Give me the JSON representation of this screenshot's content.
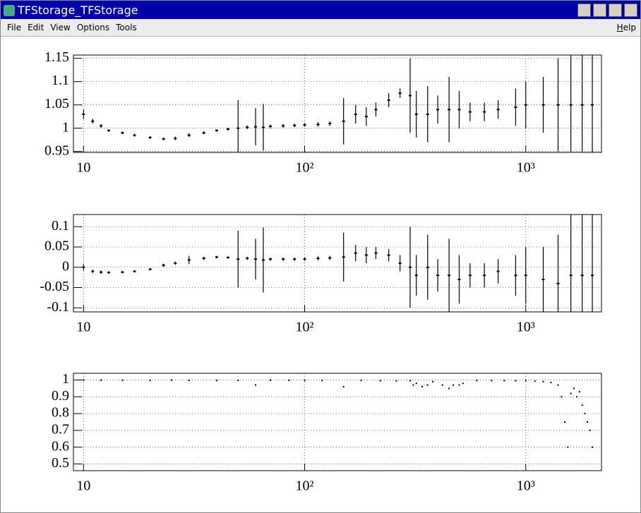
{
  "window": {
    "title": "TFStorage_TFStorage",
    "menu": [
      "File",
      "Edit",
      "View",
      "Options",
      "Tools"
    ],
    "help": "Help"
  },
  "chart_data": [
    {
      "type": "errorbar",
      "log_x": true,
      "grid": true,
      "color": "#000000",
      "xlim": [
        9,
        2200
      ],
      "xticks": [
        10,
        {
          "value": 100,
          "label": "10²"
        },
        {
          "value": 1000,
          "label": "10³"
        }
      ],
      "ylim": [
        0.948,
        1.157
      ],
      "yticks": [
        0.95,
        1,
        1.05,
        1.1,
        1.15
      ],
      "x": [
        10,
        11,
        12,
        13,
        15,
        17,
        20,
        23,
        26,
        30,
        35,
        40,
        45,
        50,
        55,
        60,
        65,
        70,
        80,
        90,
        100,
        115,
        130,
        150,
        170,
        190,
        210,
        240,
        270,
        300,
        320,
        360,
        400,
        450,
        500,
        560,
        650,
        750,
        900,
        1000,
        1200,
        1400,
        1600,
        1800,
        2000
      ],
      "values": [
        1.03,
        1.015,
        1.005,
        0.995,
        0.99,
        0.985,
        0.98,
        0.977,
        0.978,
        0.985,
        0.99,
        0.995,
        0.998,
        1.0,
        1.002,
        1.003,
        1.002,
        1.004,
        1.005,
        1.006,
        1.007,
        1.008,
        1.01,
        1.015,
        1.03,
        1.025,
        1.04,
        1.06,
        1.075,
        1.07,
        1.03,
        1.03,
        1.04,
        1.04,
        1.04,
        1.035,
        1.035,
        1.04,
        1.045,
        1.05,
        1.05,
        1.05,
        1.05,
        1.05,
        1.05
      ],
      "errors": [
        0.01,
        0.005,
        0.004,
        0.003,
        0.003,
        0.003,
        0.003,
        0.003,
        0.004,
        0.004,
        0.003,
        0.003,
        0.003,
        0.06,
        0.004,
        0.04,
        0.05,
        0.004,
        0.004,
        0.004,
        0.004,
        0.005,
        0.005,
        0.05,
        0.02,
        0.02,
        0.015,
        0.015,
        0.01,
        0.08,
        0.05,
        0.06,
        0.03,
        0.07,
        0.04,
        0.02,
        0.02,
        0.02,
        0.04,
        0.05,
        0.06,
        0.1,
        0.15,
        0.15,
        0.15
      ]
    },
    {
      "type": "errorbar",
      "log_x": true,
      "grid": true,
      "color": "#000000",
      "xlim": [
        9,
        2200
      ],
      "xticks": [
        10,
        {
          "value": 100,
          "label": "10²"
        },
        {
          "value": 1000,
          "label": "10³"
        }
      ],
      "ylim": [
        -0.11,
        0.13
      ],
      "yticks": [
        -0.1,
        -0.05,
        0,
        0.05,
        0.1
      ],
      "x": [
        10,
        11,
        12,
        13,
        15,
        17,
        20,
        23,
        26,
        30,
        35,
        40,
        45,
        50,
        55,
        60,
        65,
        70,
        80,
        90,
        100,
        115,
        130,
        150,
        170,
        190,
        210,
        240,
        270,
        300,
        320,
        360,
        400,
        450,
        500,
        560,
        650,
        750,
        900,
        1000,
        1200,
        1400,
        1600,
        1800,
        2000
      ],
      "values": [
        0.0,
        -0.01,
        -0.012,
        -0.013,
        -0.012,
        -0.01,
        -0.005,
        0.005,
        0.01,
        0.018,
        0.022,
        0.025,
        0.024,
        0.02,
        0.022,
        0.02,
        0.018,
        0.02,
        0.02,
        0.02,
        0.02,
        0.022,
        0.023,
        0.025,
        0.035,
        0.03,
        0.035,
        0.03,
        0.01,
        0.0,
        -0.02,
        0.0,
        -0.02,
        -0.02,
        -0.03,
        -0.02,
        -0.02,
        -0.01,
        -0.02,
        -0.02,
        -0.03,
        -0.04,
        -0.02,
        -0.02,
        -0.02
      ],
      "errors": [
        0.008,
        0.004,
        0.004,
        0.003,
        0.003,
        0.003,
        0.003,
        0.004,
        0.004,
        0.01,
        0.004,
        0.003,
        0.003,
        0.07,
        0.004,
        0.05,
        0.08,
        0.004,
        0.004,
        0.004,
        0.004,
        0.005,
        0.005,
        0.06,
        0.02,
        0.02,
        0.015,
        0.015,
        0.02,
        0.1,
        0.05,
        0.08,
        0.04,
        0.09,
        0.06,
        0.03,
        0.03,
        0.03,
        0.05,
        0.07,
        0.08,
        0.12,
        0.15,
        0.15,
        0.15
      ]
    },
    {
      "type": "scatter",
      "log_x": true,
      "grid": true,
      "color": "#000000",
      "xlim": [
        9,
        2200
      ],
      "xticks": [
        10,
        {
          "value": 100,
          "label": "10²"
        },
        {
          "value": 1000,
          "label": "10³"
        }
      ],
      "ylim": [
        0.46,
        1.04
      ],
      "yticks": [
        0.5,
        0.6,
        0.7,
        0.8,
        0.9,
        1
      ],
      "x": [
        10,
        12,
        15,
        20,
        25,
        30,
        40,
        50,
        60,
        70,
        85,
        100,
        120,
        150,
        180,
        220,
        260,
        300,
        310,
        320,
        340,
        360,
        380,
        420,
        450,
        470,
        500,
        520,
        600,
        700,
        800,
        900,
        1000,
        1100,
        1200,
        1300,
        1400,
        1450,
        1500,
        1550,
        1600,
        1650,
        1700,
        1750,
        1800,
        1850,
        1900,
        1950,
        2000
      ],
      "values": [
        1,
        0.999,
        0.999,
        0.998,
        0.999,
        0.998,
        0.997,
        0.998,
        0.97,
        0.998,
        0.998,
        0.997,
        0.997,
        0.96,
        0.997,
        0.996,
        0.995,
        0.996,
        0.97,
        0.98,
        0.96,
        0.97,
        0.99,
        0.97,
        0.95,
        0.97,
        0.97,
        0.98,
        0.997,
        0.997,
        0.996,
        0.996,
        0.996,
        0.993,
        0.99,
        0.985,
        0.97,
        0.9,
        0.75,
        0.6,
        0.92,
        0.95,
        0.9,
        0.93,
        0.85,
        0.8,
        0.75,
        0.7,
        0.6
      ]
    }
  ]
}
